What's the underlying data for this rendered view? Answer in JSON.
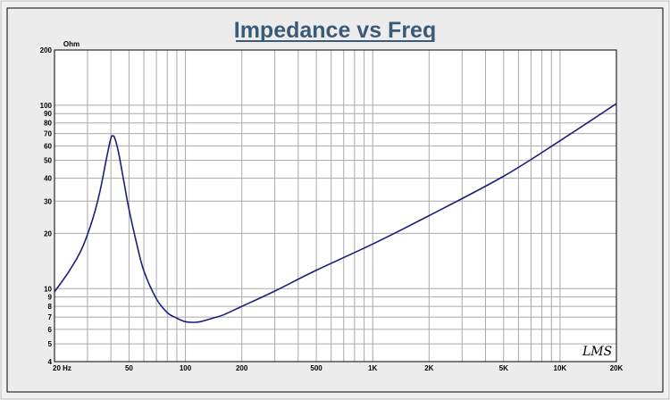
{
  "chart_data": {
    "type": "line",
    "title": "Impedance vs Freq",
    "ylabel": "Ohm",
    "x_scale": "log",
    "y_scale": "log",
    "xlim": [
      20,
      20000
    ],
    "ylim": [
      4,
      200
    ],
    "grid": true,
    "x_ticks": [
      {
        "value": 20,
        "label": "20  Hz"
      },
      {
        "value": 50,
        "label": "50"
      },
      {
        "value": 100,
        "label": "100"
      },
      {
        "value": 200,
        "label": "200"
      },
      {
        "value": 500,
        "label": "500"
      },
      {
        "value": 1000,
        "label": "1K"
      },
      {
        "value": 2000,
        "label": "2K"
      },
      {
        "value": 5000,
        "label": "5K"
      },
      {
        "value": 10000,
        "label": "10K"
      },
      {
        "value": 20000,
        "label": "20K"
      }
    ],
    "y_ticks": [
      {
        "value": 4,
        "label": "4"
      },
      {
        "value": 5,
        "label": "5"
      },
      {
        "value": 6,
        "label": "6"
      },
      {
        "value": 7,
        "label": "7"
      },
      {
        "value": 8,
        "label": "8"
      },
      {
        "value": 9,
        "label": "9"
      },
      {
        "value": 10,
        "label": "10"
      },
      {
        "value": 20,
        "label": "20"
      },
      {
        "value": 30,
        "label": "30"
      },
      {
        "value": 40,
        "label": "40"
      },
      {
        "value": 50,
        "label": "50"
      },
      {
        "value": 60,
        "label": "60"
      },
      {
        "value": 70,
        "label": "70"
      },
      {
        "value": 80,
        "label": "80"
      },
      {
        "value": 90,
        "label": "90"
      },
      {
        "value": 100,
        "label": "100"
      },
      {
        "value": 200,
        "label": "200"
      }
    ],
    "series": [
      {
        "color": "#1c1f7a",
        "x": [
          20,
          24,
          28,
          32,
          35,
          38,
          40,
          41,
          42,
          44,
          47,
          50,
          55,
          60,
          70,
          80,
          90,
          100,
          110,
          120,
          140,
          160,
          200,
          300,
          500,
          1000,
          2000,
          5000,
          10000,
          20000
        ],
        "y": [
          9.6,
          12.5,
          16.5,
          24,
          34,
          52,
          66,
          68,
          66,
          55,
          38,
          27,
          17.5,
          12.5,
          8.8,
          7.4,
          6.9,
          6.6,
          6.55,
          6.6,
          6.9,
          7.2,
          8.0,
          9.7,
          12.6,
          17.5,
          25,
          41,
          64,
          102
        ]
      }
    ],
    "watermark": "LMS"
  },
  "colors": {
    "frame_bg": "#f1f1f1",
    "plot_bg": "#ffffff",
    "grid": "#a9a9a9",
    "title": "#3b5a78",
    "curve": "#1c1f7a"
  }
}
